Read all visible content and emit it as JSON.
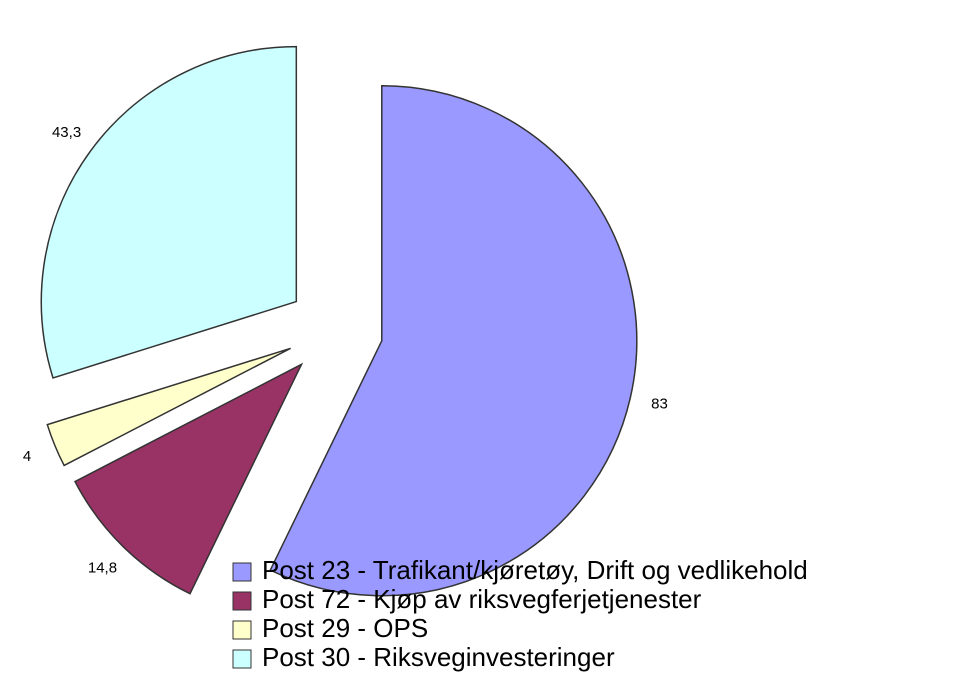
{
  "chart_data": {
    "type": "pie",
    "categories": [
      "Post 23 - Trafikant/kjøretøy, Drift og vedlikehold",
      "Post 72 - Kjøp av riksvegferjetjenester",
      "Post 29 - OPS",
      "Post 30 - Riksveginvesteringer"
    ],
    "values": [
      83,
      14.8,
      4,
      43.3
    ],
    "value_labels": [
      "83",
      "14,8",
      "4",
      "43,3"
    ],
    "colors": [
      "#9999ff",
      "#993366",
      "#ffffcc",
      "#ccffff"
    ]
  }
}
